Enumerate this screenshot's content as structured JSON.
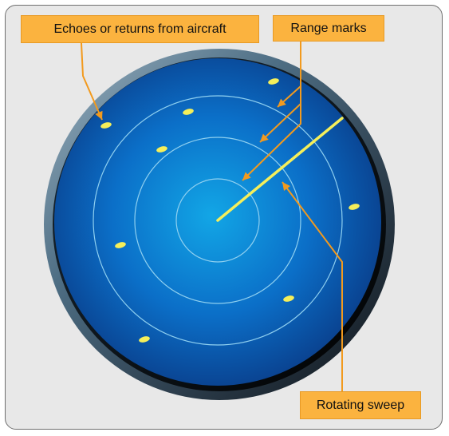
{
  "labels": {
    "echoes": "Echoes or returns from aircraft",
    "range_marks": "Range marks",
    "rotating_sweep": "Rotating sweep"
  },
  "colors": {
    "frame_background": "#e8e8e8",
    "callout_fill": "#fbb33f",
    "callout_line": "#f29a1e",
    "scope_center": "#12a6e6",
    "scope_edge": "#0a3f8c",
    "range_ring": "#8fd0f0",
    "sweep_and_echoes": "#f5ef5a"
  }
}
